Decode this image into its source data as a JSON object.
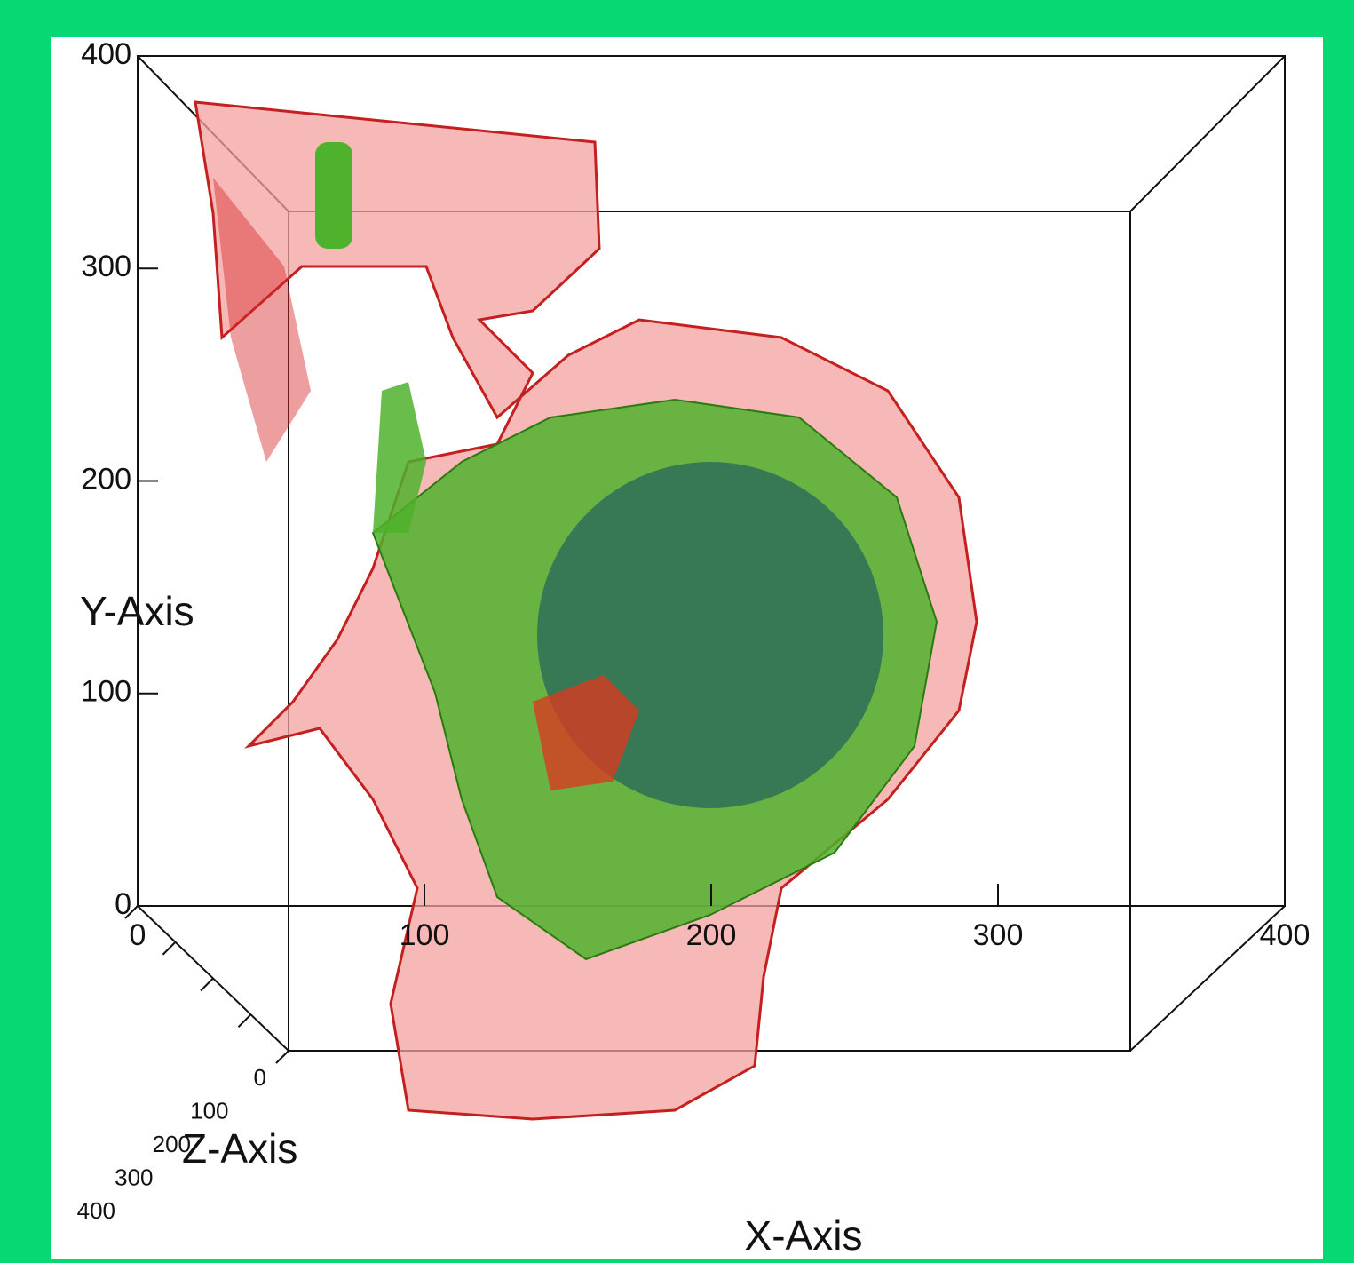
{
  "chart_data": {
    "type": "volume-render-3d",
    "x_axis": {
      "label": "X-Axis",
      "lim": [
        0,
        400
      ],
      "ticks": [
        0,
        100,
        200,
        300,
        400
      ]
    },
    "y_axis": {
      "label": "Y-Axis",
      "lim": [
        0,
        400
      ],
      "ticks": [
        0,
        100,
        200,
        300,
        400
      ]
    },
    "z_axis": {
      "label": "Z-Axis",
      "lim": [
        0,
        400
      ],
      "ticks": [
        0,
        100,
        200,
        300,
        400
      ]
    }
  }
}
